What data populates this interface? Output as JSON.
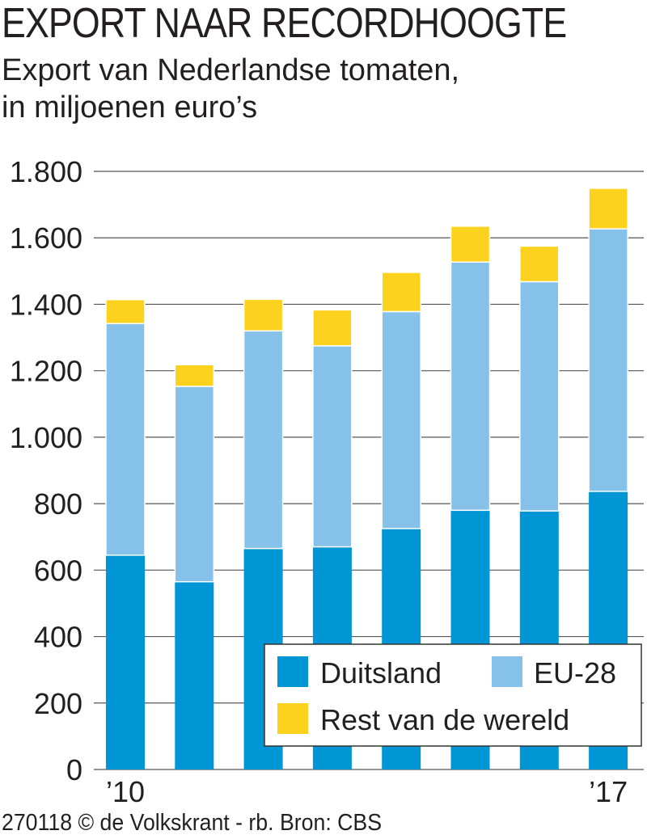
{
  "title": "EXPORT NAAR RECORDHOOGTE",
  "subtitle_line1": "Export van Nederlandse tomaten,",
  "subtitle_line2": "in miljoenen euro’s",
  "footer": "270118 © de Volkskrant - rb. Bron: CBS",
  "colors": {
    "Duitsland": "#0096d6",
    "EU-28": "#85c1e9",
    "Rest van de wereld": "#fdd21f",
    "grid": "#555555",
    "text": "#231f20"
  },
  "chart_data": {
    "type": "bar",
    "stacked": true,
    "categories": [
      "2010",
      "2011",
      "2012",
      "2013",
      "2014",
      "2015",
      "2016",
      "2017"
    ],
    "x_tick_labels": [
      "’10",
      "",
      "",
      "",
      "",
      "",
      "",
      "’17"
    ],
    "y_tick_labels": [
      "0",
      "200",
      "400",
      "600",
      "800",
      "1.000",
      "1.200",
      "1.400",
      "1.600",
      "1.800"
    ],
    "y_ticks": [
      0,
      200,
      400,
      600,
      800,
      1000,
      1200,
      1400,
      1600,
      1800
    ],
    "ylim": [
      0,
      1800
    ],
    "grid": true,
    "legend_position": "bottom-right",
    "series": [
      {
        "name": "Duitsland",
        "values": [
          645,
          565,
          665,
          670,
          725,
          780,
          778,
          837
        ]
      },
      {
        "name": "EU-28",
        "values": [
          697,
          588,
          655,
          605,
          653,
          747,
          690,
          790
        ]
      },
      {
        "name": "Rest van de wereld",
        "values": [
          72,
          65,
          95,
          108,
          118,
          108,
          107,
          122
        ]
      }
    ],
    "title": "EXPORT NAAR RECORDHOOGTE",
    "ylabel": "in miljoenen euro’s",
    "xlabel": ""
  }
}
